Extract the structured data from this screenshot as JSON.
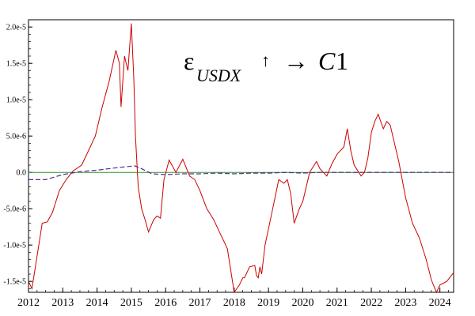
{
  "chart_data": {
    "type": "line",
    "title": "",
    "xlabel": "",
    "ylabel": "",
    "annotation": {
      "epsilon": "ε",
      "subscript": "USDX",
      "arrow_up": "↑",
      "arrow_right": "→",
      "target": "C",
      "target_index": "1"
    },
    "xlim": [
      2012.0,
      2024.4
    ],
    "ylim": [
      -1.65e-05,
      2.1e-05
    ],
    "x_ticks": [
      2012,
      2013,
      2014,
      2015,
      2016,
      2017,
      2018,
      2019,
      2020,
      2021,
      2022,
      2023,
      2024
    ],
    "x_tick_labels": [
      "2012",
      "2013",
      "2014",
      "2015",
      "2016",
      "2017",
      "2018",
      "2019",
      "2020",
      "2021",
      "2022",
      "2023",
      "2024"
    ],
    "y_ticks": [
      -1.5e-05,
      -1e-05,
      -5e-06,
      0,
      5e-06,
      1e-05,
      1.5e-05,
      2e-05
    ],
    "y_tick_labels": [
      "-1.5e-5",
      "-1.0e-5",
      "-5.0e-6",
      "0.0",
      "5.0e-6",
      "1.0e-5",
      "1.5e-5",
      "2.0e-5"
    ],
    "grid": false,
    "series": [
      {
        "color": "#cc0000",
        "dash": "",
        "x": [
          2012.0,
          2012.1,
          2012.2,
          2012.3,
          2012.4,
          2012.55,
          2012.7,
          2012.9,
          2013.1,
          2013.3,
          2013.55,
          2013.75,
          2013.95,
          2014.15,
          2014.35,
          2014.55,
          2014.65,
          2014.7,
          2014.8,
          2014.9,
          2015.0,
          2015.07,
          2015.12,
          2015.2,
          2015.3,
          2015.4,
          2015.5,
          2015.65,
          2015.75,
          2015.85,
          2015.95,
          2016.1,
          2016.3,
          2016.5,
          2016.7,
          2016.85,
          2017.0,
          2017.2,
          2017.4,
          2017.6,
          2017.8,
          2018.0,
          2018.15,
          2018.25,
          2018.3,
          2018.45,
          2018.6,
          2018.65,
          2018.7,
          2018.75,
          2018.8,
          2018.9,
          2019.1,
          2019.3,
          2019.45,
          2019.55,
          2019.65,
          2019.75,
          2019.9,
          2020.0,
          2020.2,
          2020.4,
          2020.5,
          2020.7,
          2020.85,
          2021.0,
          2021.2,
          2021.3,
          2021.4,
          2021.5,
          2021.7,
          2021.8,
          2021.9,
          2022.0,
          2022.1,
          2022.2,
          2022.35,
          2022.45,
          2022.55,
          2022.65,
          2022.8,
          2023.0,
          2023.2,
          2023.4,
          2023.6,
          2023.75,
          2023.9,
          2024.0,
          2024.2,
          2024.4
        ],
        "y": [
          -1.5e-05,
          -1.6e-05,
          -1.3e-05,
          -1e-05,
          -7e-06,
          -6.8e-06,
          -5.5e-06,
          -2.5e-06,
          -1e-06,
          2e-07,
          1e-06,
          3e-06,
          5e-06,
          9e-06,
          1.25e-05,
          1.68e-05,
          1.5e-05,
          9e-06,
          1.6e-05,
          1.4e-05,
          2.05e-05,
          1.3e-05,
          5e-06,
          -2e-06,
          -5e-06,
          -6.5e-06,
          -8.2e-06,
          -6.5e-06,
          -6e-06,
          -6.3e-06,
          -1e-06,
          1.7e-06,
          0.0,
          1.8e-06,
          -5e-07,
          -1e-06,
          -2.5e-06,
          -5e-06,
          -6.5e-06,
          -8.5e-06,
          -1.05e-05,
          -1.65e-05,
          -1.55e-05,
          -1.45e-05,
          -1.45e-05,
          -1.3e-05,
          -1.28e-05,
          -1.42e-05,
          -1.45e-05,
          -1.3e-05,
          -1.4e-05,
          -1e-05,
          -5.5e-06,
          -1e-06,
          -1.5e-06,
          -1e-06,
          -3e-06,
          -7e-06,
          -5e-06,
          -4e-06,
          0.0,
          1.5e-06,
          5e-07,
          -5e-07,
          1.2e-06,
          2.5e-06,
          3.5e-06,
          6e-06,
          3e-06,
          1e-06,
          -5e-07,
          0.0,
          2e-06,
          5.5e-06,
          7e-06,
          8e-06,
          6e-06,
          7e-06,
          6.5e-06,
          4.5e-06,
          1.5e-06,
          -3.5e-06,
          -7e-06,
          -9e-06,
          -1.2e-05,
          -1.48e-05,
          -1.65e-05,
          -1.55e-05,
          -1.5e-05,
          -1.38e-05
        ]
      },
      {
        "color": "#5a2a8a",
        "dash": "6,3",
        "x": [
          2012.0,
          2012.5,
          2013.0,
          2013.5,
          2014.0,
          2014.5,
          2014.9,
          2015.1,
          2015.3,
          2015.6,
          2016.0,
          2016.5,
          2017.0,
          2017.5,
          2018.0,
          2018.5,
          2019.0,
          2019.5,
          2020.0,
          2020.5,
          2021.0,
          2021.5,
          2022.0,
          2022.5,
          2023.0,
          2023.5,
          2024.0,
          2024.4
        ],
        "y": [
          -1e-06,
          -1e-06,
          -3e-07,
          1e-07,
          3e-07,
          6e-07,
          8e-07,
          9e-07,
          5e-07,
          -2e-07,
          -3e-07,
          -2e-07,
          -2e-07,
          -1e-07,
          -2e-07,
          -1e-07,
          -1e-07,
          0.0,
          -1e-07,
          0.0,
          0.0,
          0.0,
          0.0,
          0.0,
          0.0,
          0.0,
          0.0,
          0.0
        ]
      }
    ],
    "reference_line": {
      "y": 0,
      "color": "#2a9a2a"
    }
  }
}
